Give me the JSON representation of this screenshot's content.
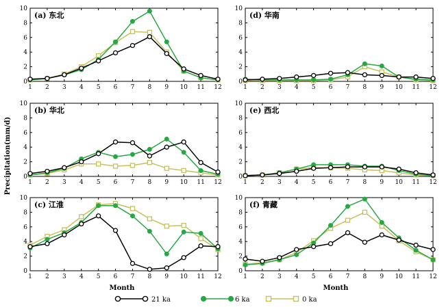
{
  "figure": {
    "ylabel": "Precipitation(mm/d)",
    "xlabel": "Month",
    "legend": [
      "21 ka",
      "6 ka",
      "0 ka"
    ]
  },
  "colors": {
    "21 ka": "#000000",
    "6 ka": "#27a844",
    "0 ka": "#c8c05a"
  },
  "chart_data": [
    {
      "type": "line",
      "title": "(a) 东北",
      "x": [
        1,
        2,
        3,
        4,
        5,
        6,
        7,
        8,
        9,
        10,
        11,
        12
      ],
      "ylim": [
        0,
        10
      ],
      "yticks": [
        0,
        2,
        4,
        6,
        8,
        10
      ],
      "series": [
        {
          "name": "21 ka",
          "values": [
            0.3,
            0.4,
            0.9,
            1.8,
            2.8,
            3.9,
            4.9,
            6.1,
            3.8,
            1.7,
            0.8,
            0.3
          ]
        },
        {
          "name": "6 ka",
          "values": [
            0.2,
            0.4,
            0.9,
            1.6,
            3.0,
            5.4,
            8.2,
            9.6,
            5.4,
            1.4,
            0.5,
            0.2
          ]
        },
        {
          "name": "0 ka",
          "values": [
            0.2,
            0.4,
            1.0,
            2.0,
            3.5,
            5.3,
            6.8,
            6.7,
            4.0,
            1.4,
            0.5,
            0.2
          ]
        }
      ]
    },
    {
      "type": "line",
      "title": "(d) 华南",
      "x": [
        1,
        2,
        3,
        4,
        5,
        6,
        7,
        8,
        9,
        10,
        11,
        12
      ],
      "ylim": [
        0,
        10
      ],
      "yticks": [
        0,
        2,
        4,
        6,
        8,
        10
      ],
      "series": [
        {
          "name": "21 ka",
          "values": [
            0.2,
            0.3,
            0.4,
            0.6,
            0.8,
            1.1,
            1.2,
            0.9,
            0.8,
            0.6,
            0.6,
            0.4
          ]
        },
        {
          "name": "6 ka",
          "values": [
            0.3,
            0.2,
            0.2,
            0.2,
            0.2,
            0.3,
            0.9,
            2.4,
            2.1,
            0.6,
            0.3,
            0.2
          ]
        },
        {
          "name": "0 ka",
          "values": [
            0.1,
            0.1,
            0.1,
            0.1,
            0.1,
            0.2,
            0.6,
            2.0,
            1.3,
            0.6,
            0.2,
            0.1
          ]
        }
      ]
    },
    {
      "type": "line",
      "title": "(b) 华北",
      "x": [
        1,
        2,
        3,
        4,
        5,
        6,
        7,
        8,
        9,
        10,
        11,
        12
      ],
      "ylim": [
        0,
        10
      ],
      "yticks": [
        0,
        2,
        4,
        6,
        8,
        10
      ],
      "series": [
        {
          "name": "21 ka",
          "values": [
            0.4,
            0.7,
            1.2,
            2.0,
            3.1,
            4.7,
            4.6,
            2.8,
            4.0,
            4.7,
            1.9,
            0.6
          ]
        },
        {
          "name": "6 ka",
          "values": [
            0.2,
            0.5,
            1.1,
            2.4,
            3.3,
            2.7,
            3.0,
            3.7,
            5.1,
            3.3,
            0.8,
            0.3
          ]
        },
        {
          "name": "0 ka",
          "values": [
            0.2,
            0.4,
            0.9,
            1.7,
            1.7,
            1.4,
            1.5,
            1.9,
            1.1,
            0.8,
            0.5,
            0.2
          ]
        }
      ]
    },
    {
      "type": "line",
      "title": "(e) 西北",
      "x": [
        1,
        2,
        3,
        4,
        5,
        6,
        7,
        8,
        9,
        10,
        11,
        12
      ],
      "ylim": [
        0,
        10
      ],
      "yticks": [
        0,
        2,
        4,
        6,
        8,
        10
      ],
      "series": [
        {
          "name": "21 ka",
          "values": [
            0.1,
            0.2,
            0.4,
            0.7,
            1.1,
            1.2,
            1.3,
            1.3,
            1.3,
            1.0,
            0.5,
            0.2
          ]
        },
        {
          "name": "6 ka",
          "values": [
            0.1,
            0.2,
            0.5,
            1.0,
            1.6,
            1.6,
            1.6,
            1.4,
            1.4,
            0.8,
            0.3,
            0.1
          ]
        },
        {
          "name": "0 ka",
          "values": [
            0.1,
            0.2,
            0.5,
            1.0,
            1.2,
            1.2,
            1.1,
            0.9,
            0.8,
            0.5,
            0.2,
            0.1
          ]
        }
      ]
    },
    {
      "type": "line",
      "title": "(c) 江淮",
      "x": [
        1,
        2,
        3,
        4,
        5,
        6,
        7,
        8,
        9,
        10,
        11,
        12
      ],
      "ylim": [
        0,
        10
      ],
      "yticks": [
        0,
        2,
        4,
        6,
        8,
        10
      ],
      "series": [
        {
          "name": "21 ka",
          "values": [
            3.3,
            3.7,
            4.9,
            6.4,
            7.5,
            5.5,
            1.0,
            0.2,
            0.4,
            1.8,
            3.4,
            3.3
          ]
        },
        {
          "name": "6 ka",
          "values": [
            3.1,
            4.3,
            5.2,
            6.6,
            8.9,
            8.9,
            7.5,
            5.4,
            2.3,
            5.3,
            5.1,
            3.0
          ]
        },
        {
          "name": "0 ka",
          "values": [
            3.5,
            4.7,
            5.6,
            7.4,
            9.0,
            9.2,
            8.5,
            7.1,
            6.1,
            6.2,
            4.4,
            2.9
          ]
        }
      ]
    },
    {
      "type": "line",
      "title": "(f) 青藏",
      "x": [
        1,
        2,
        3,
        4,
        5,
        6,
        7,
        8,
        9,
        10,
        11,
        12
      ],
      "ylim": [
        0,
        10
      ],
      "yticks": [
        0,
        2,
        4,
        6,
        8,
        10
      ],
      "series": [
        {
          "name": "21 ka",
          "values": [
            1.6,
            1.3,
            1.8,
            2.9,
            3.3,
            3.7,
            5.2,
            3.9,
            4.9,
            4.2,
            3.5,
            2.9
          ]
        },
        {
          "name": "6 ka",
          "values": [
            0.8,
            1.0,
            1.5,
            2.2,
            3.8,
            6.2,
            8.8,
            9.8,
            6.6,
            4.5,
            2.8,
            1.5
          ]
        },
        {
          "name": "0 ka",
          "values": [
            0.9,
            1.1,
            1.5,
            2.5,
            4.1,
            5.8,
            6.9,
            8.0,
            6.1,
            4.1,
            2.6,
            1.5
          ]
        }
      ]
    }
  ]
}
